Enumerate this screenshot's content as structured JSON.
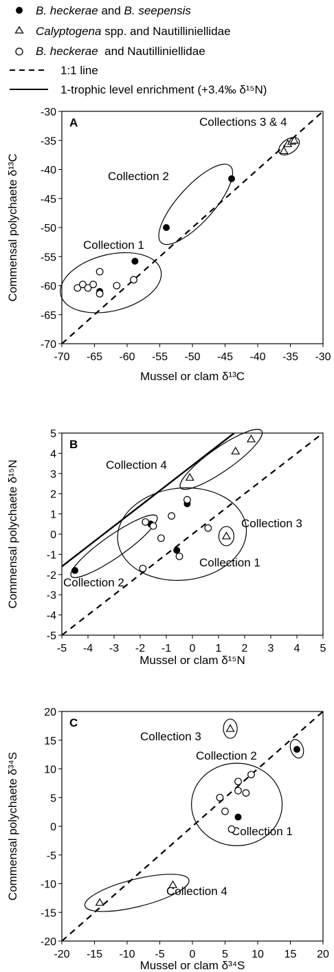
{
  "legend": {
    "items": [
      {
        "marker": "filled-circle",
        "italic": "B. heckerae",
        "rest": " and ",
        "italic2": "B. seepensis",
        "rest2": ""
      },
      {
        "marker": "open-triangle",
        "italic": "Calyptogena",
        "rest": " spp. and Nautilliniellidae",
        "italic2": "",
        "rest2": ""
      },
      {
        "marker": "open-circle",
        "italic": "B. heckerae",
        "rest": "  and Nautilliniellidae",
        "italic2": "",
        "rest2": ""
      },
      {
        "marker": "dashed-line",
        "italic": "",
        "rest": "1:1 line",
        "italic2": "",
        "rest2": ""
      },
      {
        "marker": "solid-line",
        "italic": "",
        "rest": "1-trophic level enrichment (+3.4‰ δ¹⁵N)",
        "italic2": "",
        "rest2": ""
      }
    ]
  },
  "chart_data": [
    {
      "type": "scatter",
      "panel_label": "A",
      "xlabel": "Mussel or clam δ¹³C",
      "ylabel": "Commensal polychaete δ¹³C",
      "xlim": [
        -70,
        -30
      ],
      "ylim": [
        -70,
        -30
      ],
      "xticks": [
        "-70",
        "-65",
        "-60",
        "-55",
        "-50",
        "-45",
        "-40",
        "-35",
        "-30"
      ],
      "yticks": [
        "-70",
        "-65",
        "-60",
        "-55",
        "-50",
        "-45",
        "-40",
        "-35",
        "-30"
      ],
      "series": [
        {
          "marker": "filled-circle",
          "points": [
            [
              -58.8,
              -55.8
            ],
            [
              -64.2,
              -61.0
            ],
            [
              -54.0,
              -50.0
            ],
            [
              -44.0,
              -41.6
            ]
          ]
        },
        {
          "marker": "open-triangle",
          "points": [
            [
              -36.0,
              -36.8
            ],
            [
              -35.4,
              -35.6
            ],
            [
              -34.8,
              -35.2
            ],
            [
              -34.4,
              -35.0
            ]
          ]
        },
        {
          "marker": "open-circle",
          "points": [
            [
              -67.6,
              -60.4
            ],
            [
              -66.8,
              -59.8
            ],
            [
              -66.0,
              -60.4
            ],
            [
              -65.2,
              -59.8
            ],
            [
              -64.2,
              -57.6
            ],
            [
              -64.2,
              -61.4
            ],
            [
              -61.6,
              -60.0
            ],
            [
              -59.0,
              -59.0
            ]
          ]
        }
      ],
      "reference_lines": [
        "1:1"
      ],
      "annotations": [
        "Collections 3 & 4",
        "Collection 2",
        "Collection 1"
      ]
    },
    {
      "type": "scatter",
      "panel_label": "B",
      "xlabel": "Mussel or clam δ¹⁵N",
      "ylabel": "Commensal polychaete δ¹⁵N",
      "xlim": [
        -5,
        5
      ],
      "ylim": [
        -5,
        5
      ],
      "xticks": [
        "-5",
        "-4",
        "-3",
        "-2",
        "-1",
        "0",
        "1",
        "2",
        "3",
        "4",
        "5"
      ],
      "yticks": [
        "-5",
        "-4",
        "-3",
        "-2",
        "-1",
        "0",
        "1",
        "2",
        "3",
        "4",
        "5"
      ],
      "series": [
        {
          "marker": "filled-circle",
          "points": [
            [
              -4.5,
              -1.8
            ],
            [
              -1.6,
              0.5
            ],
            [
              -0.6,
              -0.8
            ],
            [
              -0.2,
              1.5
            ]
          ]
        },
        {
          "marker": "open-triangle",
          "points": [
            [
              -0.1,
              2.8
            ],
            [
              1.3,
              -0.1
            ],
            [
              1.65,
              4.1
            ],
            [
              2.25,
              4.7
            ]
          ]
        },
        {
          "marker": "open-circle",
          "points": [
            [
              -1.9,
              -1.7
            ],
            [
              -1.8,
              0.6
            ],
            [
              -1.5,
              0.4
            ],
            [
              -1.2,
              -0.2
            ],
            [
              -0.8,
              0.9
            ],
            [
              -0.5,
              -1.1
            ],
            [
              -0.2,
              1.7
            ],
            [
              0.6,
              0.3
            ]
          ]
        }
      ],
      "reference_lines": [
        "1:1",
        "1-trophic level enrichment"
      ],
      "annotations": [
        "Collection 4",
        "Collection 3",
        "Collection 1",
        "Collection 2"
      ]
    },
    {
      "type": "scatter",
      "panel_label": "C",
      "xlabel": "Mussel or clam δ³⁴S",
      "ylabel": "Commensal polychaete δ³⁴S",
      "xlim": [
        -20,
        20
      ],
      "ylim": [
        -20,
        20
      ],
      "xticks": [
        "-20",
        "-15",
        "-10",
        "-5",
        "0",
        "5",
        "10",
        "15",
        "20"
      ],
      "yticks": [
        "-20",
        "-15",
        "-10",
        "-5",
        "0",
        "5",
        "10",
        "15",
        "20"
      ],
      "series": [
        {
          "marker": "filled-circle",
          "points": [
            [
              7.0,
              1.6
            ],
            [
              16.0,
              13.4
            ]
          ]
        },
        {
          "marker": "open-triangle",
          "points": [
            [
              -14.2,
              -13.3
            ],
            [
              -3.0,
              -10.2
            ],
            [
              5.8,
              17.0
            ]
          ]
        },
        {
          "marker": "open-circle",
          "points": [
            [
              4.2,
              5.0
            ],
            [
              5.0,
              2.6
            ],
            [
              6.0,
              -0.5
            ],
            [
              7.0,
              6.2
            ],
            [
              7.0,
              7.8
            ],
            [
              8.2,
              5.8
            ],
            [
              9.0,
              9.0
            ]
          ]
        }
      ],
      "reference_lines": [
        "1:1"
      ],
      "annotations": [
        "Collection 3",
        "Collection 2",
        "Collection 1",
        "Collection 4"
      ]
    }
  ]
}
